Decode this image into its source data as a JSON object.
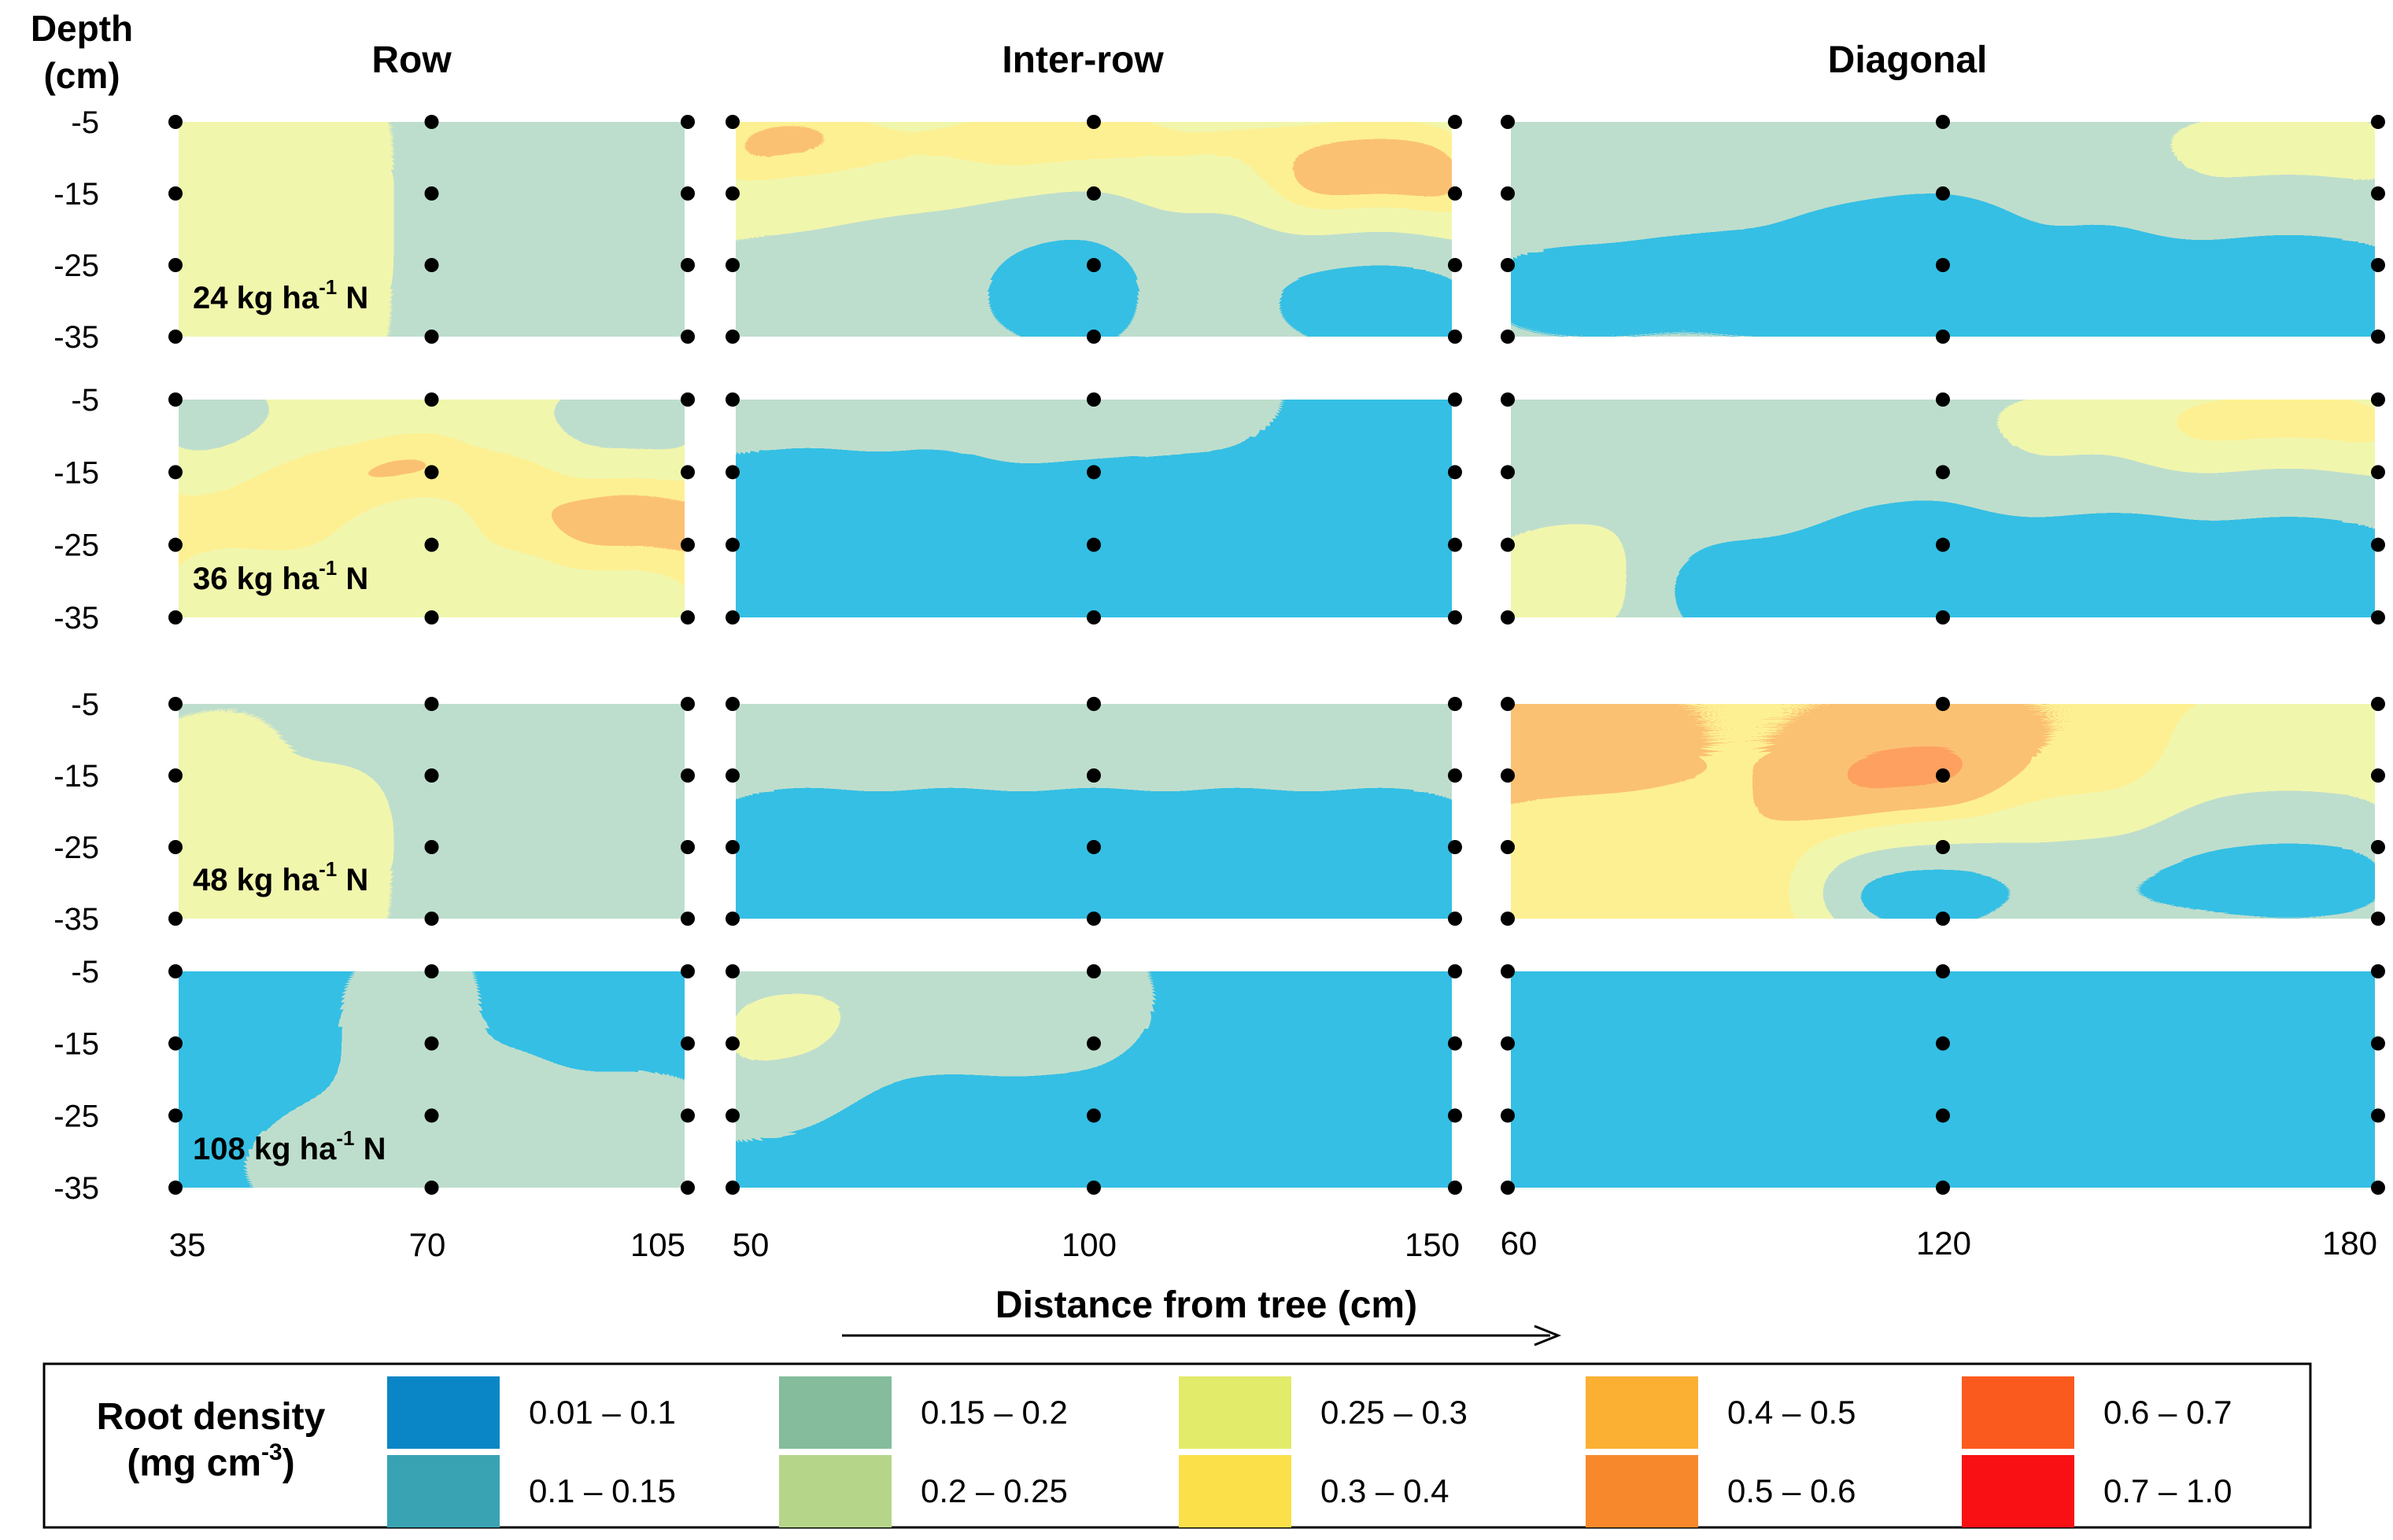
{
  "chart_data": {
    "type": "heatmap",
    "title": "",
    "depth_title": [
      "Depth",
      "(cm)"
    ],
    "depth_ticks": [
      "-5",
      "-15",
      "-25",
      "-35"
    ],
    "xlabel": "Distance from tree (cm)",
    "columns": [
      {
        "name": "Row",
        "ticks": [
          "35",
          "70",
          "105"
        ],
        "xlim": [
          35,
          105
        ]
      },
      {
        "name": "Inter-row",
        "ticks": [
          "50",
          "100",
          "150"
        ],
        "xlim": [
          50,
          150
        ]
      },
      {
        "name": "Diagonal",
        "ticks": [
          "60",
          "120",
          "180"
        ],
        "xlim": [
          60,
          180
        ]
      }
    ],
    "rows": [
      {
        "rate": "24",
        "unit": "kg ha",
        "sup": "-1",
        "nutrient": "N"
      },
      {
        "rate": "36",
        "unit": "kg ha",
        "sup": "-1",
        "nutrient": "N"
      },
      {
        "rate": "48",
        "unit": "kg ha",
        "sup": "-1",
        "nutrient": "N"
      },
      {
        "rate": "108",
        "unit": "kg ha",
        "sup": "-1",
        "nutrient": "N"
      }
    ],
    "depths": [
      -5,
      -15,
      -25,
      -35
    ],
    "legend": {
      "title": "Root density",
      "units_main": "(mg cm",
      "units_sup": "-3",
      "units_end": ")",
      "classes": [
        {
          "label": "0.01 – 0.1",
          "color": "#0a86c6"
        },
        {
          "label": "0.1 – 0.15",
          "color": "#3aa3b3"
        },
        {
          "label": "0.15 – 0.2",
          "color": "#84bc9c"
        },
        {
          "label": "0.2 – 0.25",
          "color": "#b5d689"
        },
        {
          "label": "0.25 – 0.3",
          "color": "#e2eb6a"
        },
        {
          "label": "0.3 – 0.4",
          "color": "#fbe04a"
        },
        {
          "label": "0.4 – 0.5",
          "color": "#fbb034"
        },
        {
          "label": "0.5 – 0.6",
          "color": "#f7892c"
        },
        {
          "label": "0.6 – 0.7",
          "color": "#fb5a1e"
        },
        {
          "label": "0.7 – 1.0",
          "color": "#f81014"
        }
      ]
    },
    "panels": [
      [
        {
          "base": 6,
          "grid": [
            [
              7,
              7,
              6,
              6,
              6
            ],
            [
              7,
              7,
              6,
              5,
              5
            ],
            [
              7,
              7,
              6,
              5,
              5
            ],
            [
              7,
              7,
              6,
              5,
              5
            ]
          ]
        },
        {
          "base": 6,
          "grid": [
            [
              9,
              8,
              9,
              8,
              8
            ],
            [
              7,
              7,
              6,
              7,
              9
            ],
            [
              6,
              5,
              4,
              5,
              5
            ],
            [
              5,
              5,
              3,
              5,
              3
            ]
          ]
        },
        {
          "base": 5,
          "grid": [
            [
              5,
              5,
              5,
              6,
              7
            ],
            [
              6,
              5,
              5,
              5,
              6
            ],
            [
              4,
              4,
              1,
              4,
              4
            ],
            [
              4,
              4,
              3,
              3,
              2
            ]
          ]
        }
      ],
      [
        {
          "base": 8,
          "grid": [
            [
              3,
              6,
              6,
              6,
              3
            ],
            [
              7,
              8,
              9,
              8,
              7
            ],
            [
              8,
              8,
              6,
              8,
              9
            ],
            [
              7,
              7,
              7,
              7,
              7
            ]
          ]
        },
        {
          "base": 4,
          "grid": [
            [
              5,
              5,
              6,
              5,
              4
            ],
            [
              4,
              4,
              4,
              4,
              3
            ],
            [
              2,
              2,
              2,
              3,
              3
            ],
            [
              2,
              2,
              1,
              2,
              4
            ]
          ]
        },
        {
          "base": 5,
          "grid": [
            [
              5,
              5,
              6,
              7,
              9
            ],
            [
              5,
              6,
              5,
              6,
              6
            ],
            [
              6,
              5,
              4,
              4,
              4
            ],
            [
              7,
              3,
              0,
              1,
              3
            ]
          ]
        }
      ],
      [
        {
          "base": 6,
          "grid": [
            [
              6,
              6,
              6,
              6,
              5
            ],
            [
              7,
              6,
              6,
              6,
              5
            ],
            [
              7,
              7,
              6,
              6,
              5
            ],
            [
              7,
              7,
              6,
              5,
              5
            ]
          ]
        },
        {
          "base": 5,
          "grid": [
            [
              6,
              6,
              6,
              6,
              6
            ],
            [
              5,
              5,
              5,
              5,
              5
            ],
            [
              3,
              3,
              3,
              3,
              3
            ],
            [
              1,
              1,
              1,
              1,
              1
            ]
          ]
        },
        {
          "base": 8,
          "grid": [
            [
              8,
              8,
              8,
              8,
              7
            ],
            [
              9,
              8,
              9,
              8,
              7
            ],
            [
              7,
              8,
              8,
              7,
              5
            ],
            [
              8,
              8,
              2,
              4,
              3
            ]
          ]
        }
      ],
      [
        {
          "base": 4,
          "grid": [
            [
              2,
              4,
              5,
              4,
              2
            ],
            [
              3,
              4,
              5,
              4,
              3
            ],
            [
              3,
              4,
              5,
              5,
              5
            ],
            [
              4,
              5,
              5,
              5,
              5
            ]
          ]
        },
        {
          "base": 4,
          "grid": [
            [
              6,
              6,
              5,
              4,
              4
            ],
            [
              7,
              5,
              5,
              4,
              4
            ],
            [
              5,
              4,
              4,
              3,
              3
            ],
            [
              4,
              3,
              2,
              2,
              2
            ]
          ]
        },
        {
          "base": 3,
          "grid": [
            [
              4,
              3,
              2,
              2,
              3
            ],
            [
              3,
              3,
              1,
              2,
              4
            ],
            [
              2,
              3,
              0,
              1,
              2
            ],
            [
              3,
              2,
              0,
              1,
              0
            ]
          ]
        }
      ]
    ]
  }
}
